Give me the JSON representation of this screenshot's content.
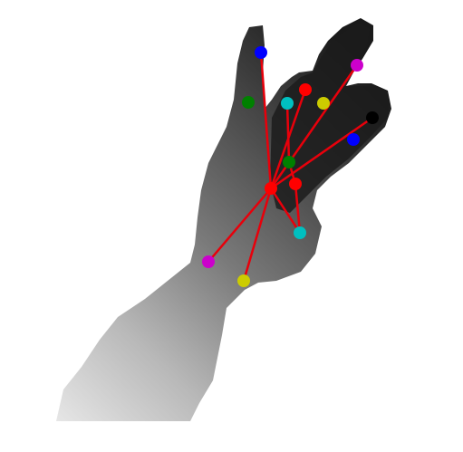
{
  "scene": {
    "background": "#ffffff",
    "depth_gradient": [
      "#e6e6e6",
      "#9a9a9a",
      "#5a5a5a",
      "#2a2a2a",
      "#111111"
    ],
    "bone_color": "#e8000b"
  },
  "keypoints": [
    {
      "name": "keypoint-palm-center",
      "color": "#ff0000"
    },
    {
      "name": "keypoint-wrist-magenta",
      "color": "#cc00cc"
    },
    {
      "name": "keypoint-wrist-yellow",
      "color": "#cccc00"
    },
    {
      "name": "keypoint-thumb-cyan",
      "color": "#00c0c0"
    },
    {
      "name": "keypoint-palm-red",
      "color": "#ff0000"
    },
    {
      "name": "keypoint-index-green",
      "color": "#008000"
    },
    {
      "name": "keypoint-index-blue",
      "color": "#0000ff"
    },
    {
      "name": "keypoint-middle-green",
      "color": "#008000"
    },
    {
      "name": "keypoint-middle-cyan",
      "color": "#00c0c0"
    },
    {
      "name": "keypoint-middle-red",
      "color": "#ff0000"
    },
    {
      "name": "keypoint-ring-yellow",
      "color": "#cccc00"
    },
    {
      "name": "keypoint-ring-magenta",
      "color": "#cc00cc"
    },
    {
      "name": "keypoint-pinky-blue",
      "color": "#0000ff"
    },
    {
      "name": "keypoint-pinky-black",
      "color": "#000000"
    }
  ]
}
